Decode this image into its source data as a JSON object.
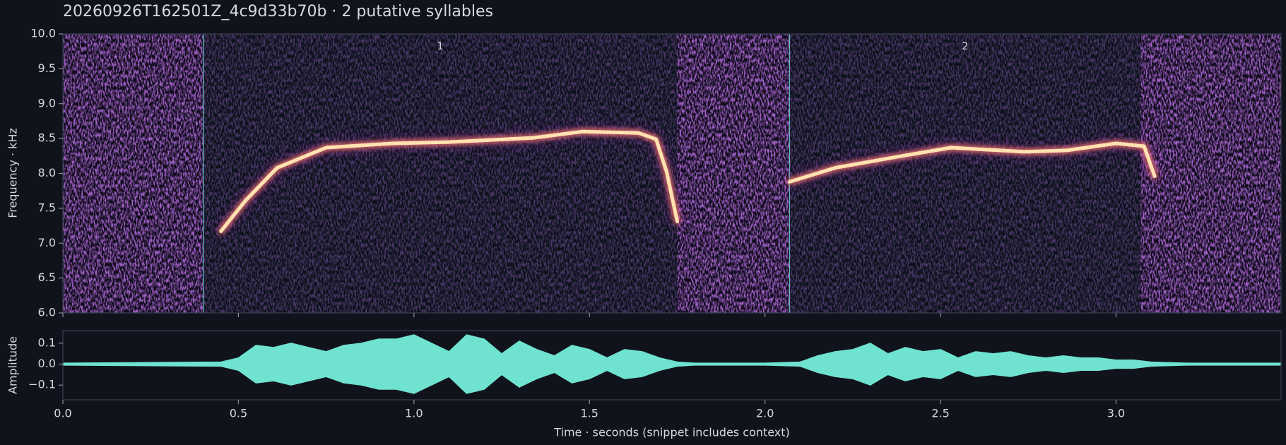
{
  "chart_data": [
    {
      "type": "line",
      "title": "20260926T162501Z_4c9d33b70b  ·  2 putative syllables",
      "ylabel": "Frequency · kHz",
      "xlim": [
        0,
        3.47
      ],
      "ylim": [
        6,
        10
      ],
      "yticks": [
        {
          "value": 6,
          "label": "6.0"
        },
        6.5,
        {
          "value": 7,
          "label": "7.0"
        },
        7.5,
        {
          "value": 8,
          "label": "8.0"
        },
        8.5,
        {
          "value": 9,
          "label": "9.0"
        },
        9.5,
        {
          "value": 10,
          "label": "10.0"
        }
      ],
      "syllables": [
        {
          "label": "1",
          "start": 0.4,
          "end": 1.75
        },
        {
          "label": "2",
          "start": 2.07,
          "end": 3.07
        }
      ],
      "x": [
        0.45,
        0.52,
        0.61,
        0.75,
        0.94,
        1.1,
        1.34,
        1.48,
        1.64,
        1.69,
        1.72,
        1.75,
        null,
        2.07,
        2.2,
        2.39,
        2.53,
        2.74,
        2.86,
        3.0,
        3.08,
        3.11
      ],
      "values": [
        7.17,
        7.61,
        8.08,
        8.37,
        8.43,
        8.45,
        8.51,
        8.6,
        8.58,
        8.49,
        8.02,
        7.31,
        null,
        7.88,
        8.08,
        8.25,
        8.37,
        8.31,
        8.33,
        8.43,
        8.39,
        7.96
      ],
      "color": "#ffe2b0"
    },
    {
      "type": "area",
      "xlabel": "Time · seconds (snippet includes context)",
      "ylabel": "Amplitude",
      "xlim": [
        0,
        3.47
      ],
      "ylim": [
        -0.17,
        0.16
      ],
      "xticks": [
        {
          "value": 0,
          "label": "0.0"
        },
        0.5,
        {
          "value": 1,
          "label": "1.0"
        },
        1.5,
        {
          "value": 2,
          "label": "2.0"
        },
        2.5,
        {
          "value": 3,
          "label": "3.0"
        }
      ],
      "yticks": [
        {
          "value": -0.1,
          "label": "−0.1"
        },
        {
          "value": 0,
          "label": "0.0"
        },
        0.1
      ],
      "x": [
        0.0,
        0.45,
        0.5,
        0.55,
        0.6,
        0.65,
        0.7,
        0.75,
        0.8,
        0.85,
        0.9,
        0.95,
        1.0,
        1.05,
        1.1,
        1.15,
        1.2,
        1.25,
        1.3,
        1.35,
        1.4,
        1.45,
        1.5,
        1.55,
        1.6,
        1.65,
        1.7,
        1.75,
        1.8,
        2.0,
        2.1,
        2.15,
        2.2,
        2.25,
        2.3,
        2.35,
        2.4,
        2.45,
        2.5,
        2.55,
        2.6,
        2.65,
        2.7,
        2.75,
        2.8,
        2.85,
        2.9,
        2.95,
        3.0,
        3.05,
        3.1,
        3.2,
        3.47
      ],
      "values": [
        0.005,
        0.01,
        0.03,
        0.09,
        0.08,
        0.1,
        0.08,
        0.06,
        0.09,
        0.1,
        0.12,
        0.12,
        0.14,
        0.1,
        0.06,
        0.14,
        0.12,
        0.05,
        0.11,
        0.07,
        0.04,
        0.09,
        0.07,
        0.03,
        0.07,
        0.06,
        0.03,
        0.01,
        0.005,
        0.005,
        0.01,
        0.04,
        0.06,
        0.07,
        0.1,
        0.05,
        0.08,
        0.06,
        0.07,
        0.03,
        0.06,
        0.05,
        0.06,
        0.04,
        0.03,
        0.04,
        0.03,
        0.03,
        0.02,
        0.02,
        0.01,
        0.005,
        0.005
      ],
      "color": "#6fe3cf"
    }
  ]
}
